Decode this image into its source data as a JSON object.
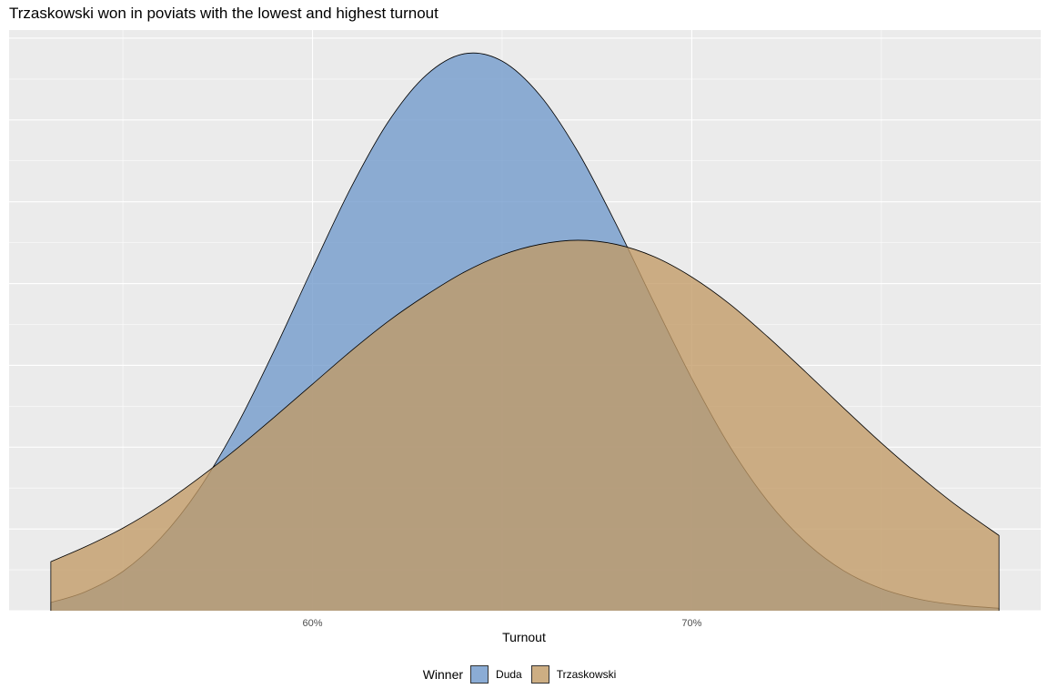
{
  "chart_data": {
    "type": "area",
    "subtype": "density",
    "title": "Trzaskowski won in poviats with the lowest and highest turnout",
    "xlabel": "Turnout",
    "ylabel": "",
    "x_range": [
      53.1,
      78.1
    ],
    "xlim": [
      52.0,
      79.2
    ],
    "x_ticks": [
      60,
      70
    ],
    "x_tick_labels": [
      "60%",
      "70%"
    ],
    "ylim": [
      0,
      0.071
    ],
    "grid": true,
    "legend_position": "bottom",
    "legend_title": "Winner",
    "series": [
      {
        "name": "Duda",
        "color": "#6f98cb",
        "points": [
          [
            53.1,
            0.001
          ],
          [
            54,
            0.0023
          ],
          [
            55,
            0.0048
          ],
          [
            56,
            0.0089
          ],
          [
            57,
            0.0148
          ],
          [
            58,
            0.0226
          ],
          [
            59,
            0.0319
          ],
          [
            60,
            0.0419
          ],
          [
            61,
            0.0516
          ],
          [
            62,
            0.0598
          ],
          [
            63,
            0.0655
          ],
          [
            64,
            0.0681
          ],
          [
            65,
            0.0672
          ],
          [
            66,
            0.063
          ],
          [
            67,
            0.0561
          ],
          [
            68,
            0.0473
          ],
          [
            69,
            0.0377
          ],
          [
            70,
            0.0284
          ],
          [
            71,
            0.0201
          ],
          [
            72,
            0.0134
          ],
          [
            73,
            0.0084
          ],
          [
            74,
            0.0049
          ],
          [
            75,
            0.0027
          ],
          [
            76,
            0.0014
          ],
          [
            77,
            0.0007
          ],
          [
            78.1,
            0.0003
          ]
        ]
      },
      {
        "name": "Trzaskowski",
        "color": "#c19a65",
        "points": [
          [
            53.1,
            0.006
          ],
          [
            54,
            0.0078
          ],
          [
            55,
            0.0101
          ],
          [
            56,
            0.0129
          ],
          [
            57,
            0.0162
          ],
          [
            58,
            0.0198
          ],
          [
            59,
            0.0237
          ],
          [
            60,
            0.0277
          ],
          [
            61,
            0.0317
          ],
          [
            62,
            0.0354
          ],
          [
            63,
            0.0386
          ],
          [
            64,
            0.0414
          ],
          [
            65,
            0.0435
          ],
          [
            66,
            0.0448
          ],
          [
            67,
            0.0453
          ],
          [
            68,
            0.0448
          ],
          [
            69,
            0.0433
          ],
          [
            70,
            0.0408
          ],
          [
            71,
            0.0375
          ],
          [
            72,
            0.0335
          ],
          [
            73,
            0.0292
          ],
          [
            74,
            0.0248
          ],
          [
            75,
            0.0205
          ],
          [
            76,
            0.0165
          ],
          [
            77,
            0.0128
          ],
          [
            78.1,
            0.0092
          ]
        ]
      }
    ]
  }
}
